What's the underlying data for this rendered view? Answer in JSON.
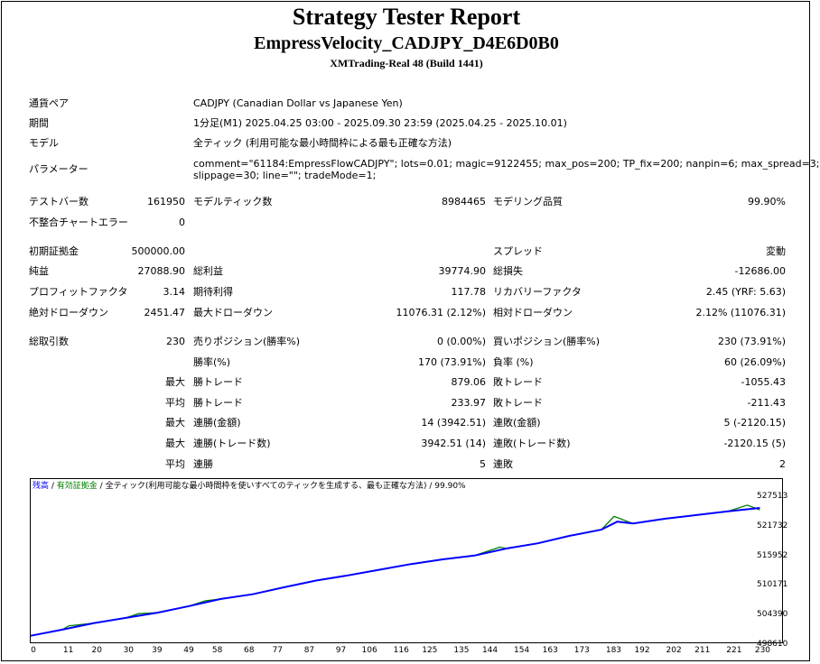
{
  "header": {
    "title": "Strategy Tester Report",
    "ea_name": "EmpressVelocity_CADJPY_D4E6D0B0",
    "server": "XMTrading-Real 48 (Build 1441)"
  },
  "info": {
    "symbol_label": "通貨ペア",
    "symbol_value": "CADJPY (Canadian Dollar vs Japanese Yen)",
    "period_label": "期間",
    "period_value": "1分足(M1) 2025.04.25 03:00 - 2025.09.30 23:59 (2025.04.25 - 2025.10.01)",
    "model_label": "モデル",
    "model_value": "全ティック (利用可能な最小時間枠による最も正確な方法)",
    "params_label": "パラメーター",
    "params_line1": "comment=\"61184:EmpressFlowCADJPY\"; lots=0.01; magic=9122455; max_pos=200; TP_fix=200; nanpin=6; max_spread=3;",
    "params_line2": "slippage=30; line=\"\"; tradeMode=1;"
  },
  "stats": {
    "bars_label": "テストバー数",
    "bars_value": "161950",
    "ticks_label": "モデルティック数",
    "ticks_value": "8984465",
    "quality_label": "モデリング品質",
    "quality_value": "99.90%",
    "mismatch_label": "不整合チャートエラー",
    "mismatch_value": "0",
    "deposit_label": "初期証拠金",
    "deposit_value": "500000.00",
    "spread_label": "スプレッド",
    "spread_value": "変動",
    "net_label": "純益",
    "net_value": "27088.90",
    "gross_profit_label": "総利益",
    "gross_profit_value": "39774.90",
    "gross_loss_label": "総損失",
    "gross_loss_value": "-12686.00",
    "pf_label": "プロフィットファクタ",
    "pf_value": "3.14",
    "expected_label": "期待利得",
    "expected_value": "117.78",
    "recovery_label": "リカバリーファクタ",
    "recovery_value": "2.45 (YRF: 5.63)",
    "abs_dd_label": "絶対ドローダウン",
    "abs_dd_value": "2451.47",
    "max_dd_label": "最大ドローダウン",
    "max_dd_value": "11076.31 (2.12%)",
    "rel_dd_label": "相対ドローダウン",
    "rel_dd_value": "2.12% (11076.31)",
    "trades_label": "総取引数",
    "trades_value": "230",
    "short_label": "売りポジション(勝率%)",
    "short_value": "0 (0.00%)",
    "long_label": "買いポジション(勝率%)",
    "long_value": "230 (73.91%)",
    "win_pct_label": "勝率(%)",
    "win_pct_value": "170 (73.91%)",
    "loss_pct_label": "負率 (%)",
    "loss_pct_value": "60 (26.09%)",
    "max_label": "最大",
    "avg_label": "平均",
    "max_win_label": "勝トレード",
    "max_win_value": "879.06",
    "max_loss_label": "敗トレード",
    "max_loss_value": "-1055.43",
    "avg_win_label": "勝トレード",
    "avg_win_value": "233.97",
    "avg_loss_label": "敗トレード",
    "avg_loss_value": "-211.43",
    "cons_win_amt_label": "連勝(金額)",
    "cons_win_amt_value": "14 (3942.51)",
    "cons_loss_amt_label": "連敗(金額)",
    "cons_loss_amt_value": "5 (-2120.15)",
    "cons_win_cnt_label": "連勝(トレード数)",
    "cons_win_cnt_value": "3942.51 (14)",
    "cons_loss_cnt_label": "連敗(トレード数)",
    "cons_loss_cnt_value": "-2120.15 (5)",
    "avg_cons_win_label": "連勝",
    "avg_cons_win_value": "5",
    "avg_cons_loss_label": "連敗",
    "avg_cons_loss_value": "2"
  },
  "chart_data": {
    "type": "line",
    "legend": {
      "balance": "残高",
      "sep1": " / ",
      "equity": "有効証拠金",
      "sep2": " / ",
      "model": "全ティック(利用可能な最小時間枠を使いすべてのティックを生成する、最も正確な方法)",
      "sep3": " / ",
      "quality": "99.90%"
    },
    "xlim": [
      0,
      235
    ],
    "ylim": [
      498610,
      531500
    ],
    "x_ticks": [
      0,
      11,
      20,
      30,
      39,
      49,
      58,
      68,
      77,
      87,
      97,
      106,
      116,
      125,
      135,
      144,
      154,
      163,
      173,
      183,
      192,
      202,
      211,
      221,
      230
    ],
    "y_ticks": [
      "527513",
      "521732",
      "515952",
      "510171",
      "504390",
      "498610"
    ],
    "series": [
      {
        "name": "残高",
        "color": "#0000ff",
        "x": [
          0,
          10,
          20,
          30,
          40,
          50,
          60,
          70,
          80,
          90,
          100,
          110,
          120,
          130,
          140,
          150,
          160,
          170,
          180,
          185,
          190,
          200,
          210,
          220,
          230
        ],
        "y": [
          500000,
          501300,
          502700,
          503800,
          504900,
          506300,
          507800,
          508800,
          510300,
          511700,
          512800,
          514000,
          515200,
          516200,
          517000,
          518500,
          519600,
          521200,
          522500,
          524200,
          523800,
          524800,
          525600,
          526400,
          527100
        ]
      },
      {
        "name": "有効証拠金",
        "color": "#008000",
        "x": [
          0,
          10,
          12,
          20,
          30,
          34,
          40,
          50,
          55,
          60,
          70,
          80,
          90,
          100,
          110,
          120,
          130,
          140,
          148,
          150,
          160,
          170,
          180,
          184,
          190,
          200,
          210,
          220,
          226,
          230
        ],
        "y": [
          500000,
          501300,
          502100,
          502700,
          503800,
          504700,
          504900,
          506300,
          507400,
          507800,
          508800,
          510300,
          511700,
          512800,
          514000,
          515200,
          516200,
          517000,
          518800,
          518500,
          519600,
          521200,
          522500,
          525300,
          523800,
          524800,
          525600,
          526400,
          527700,
          526700
        ]
      }
    ]
  }
}
